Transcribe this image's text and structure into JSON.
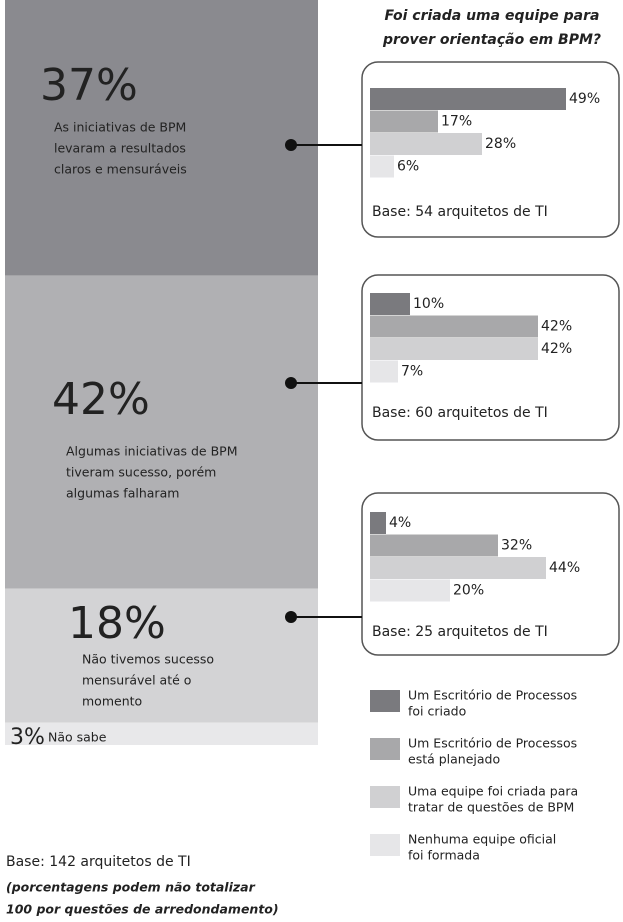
{
  "chart_data": [
    {
      "type": "stack",
      "ylim": [
        0,
        100
      ],
      "values": [
        37,
        42,
        18,
        3
      ],
      "value_labels": [
        "37%",
        "42%",
        "18%",
        "3%"
      ],
      "colors": [
        "#8a8a8f",
        "#b0b0b3",
        "#d3d3d5",
        "#e8e8ea"
      ],
      "descriptions": [
        [
          "As iniciativas de BPM",
          "levaram a resultados",
          "claros e mensuráveis"
        ],
        [
          "Algumas iniciativas de BPM",
          "tiveram sucesso, porém",
          "algumas falharam"
        ],
        [
          "Não tivemos sucesso",
          "mensurável até o",
          " momento"
        ],
        [
          "Não sabe"
        ]
      ]
    },
    {
      "type": "hbar",
      "xlim": [
        0,
        50
      ],
      "values": [
        49,
        17,
        28,
        6
      ],
      "value_labels": [
        "49%",
        "17%",
        "28%",
        "6%"
      ],
      "base": "Base: 54 arquitetos de TI"
    },
    {
      "type": "hbar",
      "xlim": [
        0,
        50
      ],
      "values": [
        10,
        42,
        42,
        7
      ],
      "value_labels": [
        "10%",
        "42%",
        "42%",
        "7%"
      ],
      "base": "Base: 60 arquitetos de TI"
    },
    {
      "type": "hbar",
      "xlim": [
        0,
        50
      ],
      "values": [
        4,
        32,
        44,
        20
      ],
      "value_labels": [
        "4%",
        "32%",
        "44%",
        "20%"
      ],
      "base": "Base: 25 arquitetos de TI"
    }
  ],
  "title": [
    "Foi criada uma equipe para",
    "prover orientação em BPM?"
  ],
  "legend": [
    {
      "name": [
        "Um Escritório de Processos",
        " foi criado"
      ],
      "color": "#7a7a7e"
    },
    {
      "name": [
        "Um Escritório de Processos",
        " está planejado"
      ],
      "color": "#a8a8aa"
    },
    {
      "name": [
        "Uma equipe foi criada para",
        " tratar de questões de BPM"
      ],
      "color": "#d0d0d2"
    },
    {
      "name": [
        "Nenhuma equipe oficial",
        "foi formada"
      ],
      "color": "#e6e6e8"
    }
  ],
  "footnote": {
    "base": "Base: 142 arquitetos de TI",
    "note": [
      "(porcentagens podem não totalizar",
      "100 por questões de arredondamento)"
    ]
  }
}
